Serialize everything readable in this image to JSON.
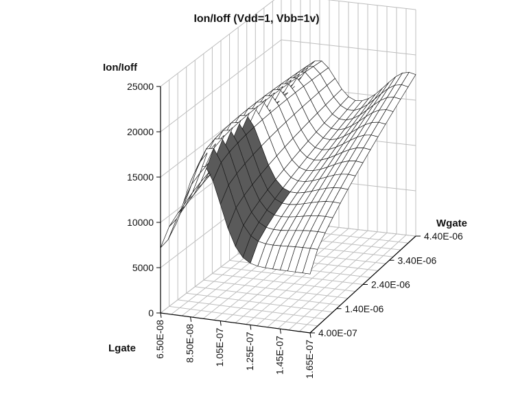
{
  "chart_data": {
    "type": "surface",
    "title": "Ion/Ioff (Vdd=1, Vbb=1v)",
    "zlabel": "Ion/Ioff",
    "xlabel": "Lgate",
    "ylabel": "Wgate",
    "z_ticks": [
      "0",
      "5000",
      "10000",
      "15000",
      "20000",
      "25000"
    ],
    "z_range": [
      0,
      25000
    ],
    "x_ticks": [
      "6.50E-08",
      "8.50E-08",
      "1.05E-07",
      "1.25E-07",
      "1.45E-07",
      "1.65E-07"
    ],
    "x_range": [
      6.5e-08,
      1.65e-07
    ],
    "y_ticks": [
      "4.00E-07",
      "1.40E-06",
      "2.40E-06",
      "3.40E-06",
      "4.40E-06"
    ],
    "y_range": [
      4e-07,
      4.4e-06
    ],
    "grid": true,
    "colors": {
      "surface_front": "#ffffff",
      "surface_shaded": "#5a5a5a",
      "mesh": "#1a1a1a",
      "grid": "#bdbdbd",
      "axis": "#000000"
    }
  }
}
